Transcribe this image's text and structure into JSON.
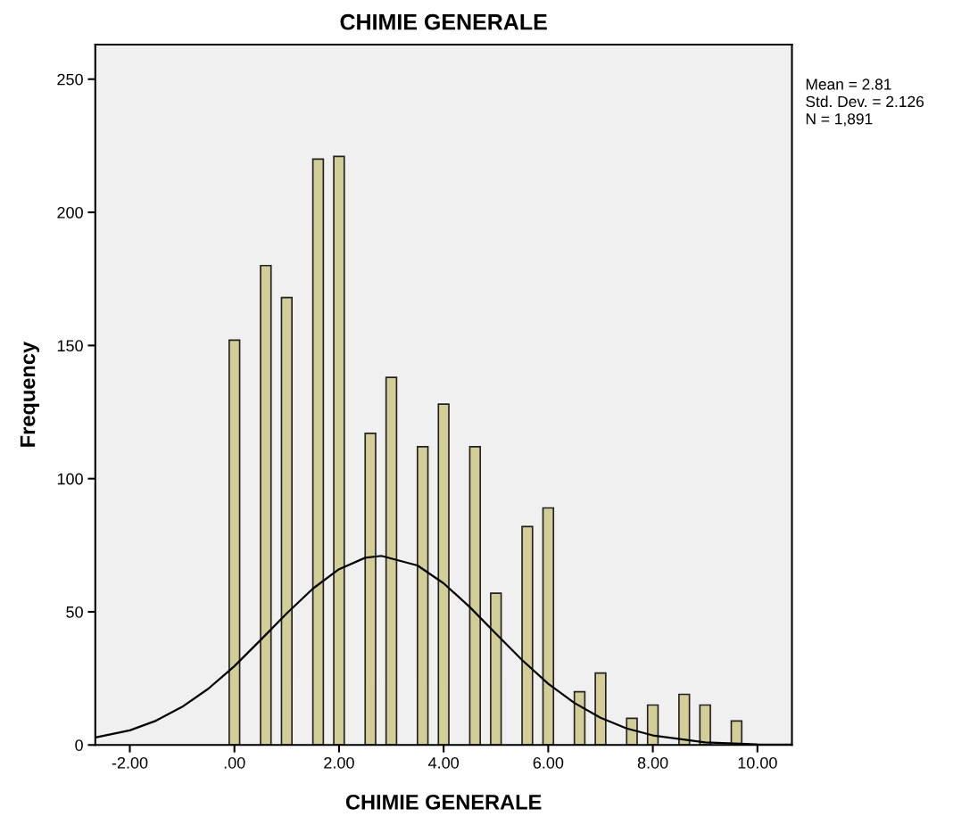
{
  "chart_data": {
    "type": "histogram",
    "title": "CHIMIE GENERALE",
    "xlabel": "CHIMIE GENERALE",
    "ylabel": "Frequency",
    "bins": [
      -0.1,
      0.1,
      0.3,
      0.5,
      0.7,
      0.9,
      1.1,
      1.3,
      1.5,
      1.7,
      1.9,
      2.1,
      2.3,
      2.5,
      2.7,
      2.9,
      3.1,
      3.3,
      3.5,
      3.7,
      3.9,
      4.1,
      4.3,
      4.5,
      4.7,
      4.9,
      5.1,
      5.3,
      5.5,
      5.7,
      5.9,
      6.1,
      6.3,
      6.5,
      6.7,
      6.9,
      7.1,
      7.3,
      7.5,
      7.7,
      7.9,
      8.1,
      8.3,
      8.5,
      8.7,
      8.9,
      9.1,
      9.3,
      9.5,
      9.7
    ],
    "values": [
      152,
      0,
      0,
      180,
      0,
      168,
      0,
      0,
      220,
      0,
      221,
      0,
      0,
      117,
      0,
      138,
      0,
      0,
      112,
      0,
      128,
      0,
      0,
      112,
      0,
      57,
      0,
      0,
      82,
      0,
      89,
      0,
      0,
      20,
      0,
      27,
      0,
      0,
      10,
      0,
      15,
      0,
      0,
      19,
      0,
      15,
      0,
      0,
      9
    ],
    "color": "#d3ce97",
    "series": [
      {
        "type": "line",
        "color": "#000000",
        "x": [
          -2.66,
          -2.0,
          -1.5,
          -1.0,
          -0.5,
          0.0,
          0.5,
          1.0,
          1.5,
          2.0,
          2.5,
          2.81,
          3.5,
          4.0,
          4.5,
          5.0,
          5.5,
          6.0,
          6.5,
          7.0,
          7.5,
          8.0,
          9.0,
          10.0,
          10.66
        ],
        "values": [
          2.8,
          5.5,
          9.1,
          14.3,
          21.1,
          29.6,
          39.4,
          49.4,
          58.7,
          66.0,
          70.3,
          71,
          67.4,
          60.7,
          51.8,
          41.8,
          31.9,
          23.0,
          15.8,
          10.2,
          6.2,
          3.6,
          1.0,
          0.2,
          0.1
        ]
      }
    ],
    "xlim": [
      -2.66,
      10.66
    ],
    "xticks": [
      {
        "value": -2,
        "label": "-2.00"
      },
      {
        "value": 0,
        "label": ".00"
      },
      {
        "value": 2,
        "label": "2.00"
      },
      {
        "value": 4,
        "label": "4.00"
      },
      {
        "value": 6,
        "label": "6.00"
      },
      {
        "value": 8,
        "label": "8.00"
      },
      {
        "value": 10,
        "label": "10.00"
      }
    ],
    "ylim": [
      0,
      263
    ],
    "yticks": [
      0,
      50,
      100,
      150,
      200,
      250
    ],
    "grid": false,
    "annotations": [
      "Mean = 2.81",
      "Std. Dev. = 2.126",
      "N = 1,891"
    ]
  }
}
